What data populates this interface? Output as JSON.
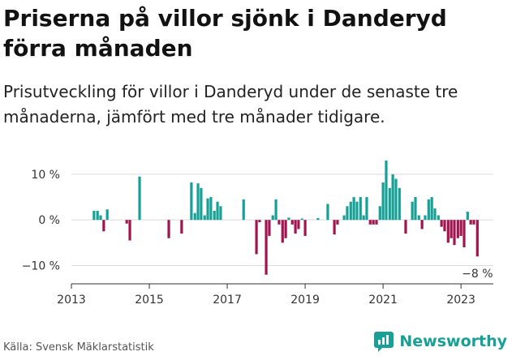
{
  "title": "Priserna på villor sjönk i Danderyd förra månaden",
  "subtitle": "Prisutveckling för villor i Danderyd under de senaste tre månaderna, jämfört med tre månader tidigare.",
  "source": "Källa: Svensk Mäklarstatistik",
  "brand": "Newsworthy",
  "colors": {
    "positive": "#16a096",
    "negative": "#a0144f",
    "brand": "#16a096",
    "grid": "#d9d9d9",
    "axis": "#333333"
  },
  "chart_data": {
    "type": "bar",
    "y_unit": "%",
    "ylim": [
      -14,
      13
    ],
    "yticks": [
      10,
      0,
      -10
    ],
    "ytick_labels": [
      "10 %",
      "0 %",
      "−10 %"
    ],
    "xlim": [
      2013.0,
      2023.83
    ],
    "xticks": [
      2013,
      2015,
      2017,
      2019,
      2021,
      2023
    ],
    "xtick_labels": [
      "2013",
      "2015",
      "2017",
      "2019",
      "2021",
      "2023"
    ],
    "last_value_label": "−8 %",
    "series": [
      {
        "x": 2013.58,
        "v": 2
      },
      {
        "x": 2013.67,
        "v": 2
      },
      {
        "x": 2013.75,
        "v": 1
      },
      {
        "x": 2013.83,
        "v": -2.5
      },
      {
        "x": 2013.92,
        "v": 2.3
      },
      {
        "x": 2014.42,
        "v": -0.8
      },
      {
        "x": 2014.5,
        "v": -4.5
      },
      {
        "x": 2014.75,
        "v": 9.5
      },
      {
        "x": 2015.5,
        "v": -4
      },
      {
        "x": 2015.83,
        "v": -3
      },
      {
        "x": 2016.08,
        "v": 8.2
      },
      {
        "x": 2016.17,
        "v": 1.5
      },
      {
        "x": 2016.25,
        "v": 8
      },
      {
        "x": 2016.33,
        "v": 7
      },
      {
        "x": 2016.42,
        "v": 1
      },
      {
        "x": 2016.5,
        "v": 4.7
      },
      {
        "x": 2016.58,
        "v": 5
      },
      {
        "x": 2016.67,
        "v": 2
      },
      {
        "x": 2016.75,
        "v": 4
      },
      {
        "x": 2016.83,
        "v": 3
      },
      {
        "x": 2017.42,
        "v": 4.5
      },
      {
        "x": 2017.75,
        "v": -7.5
      },
      {
        "x": 2017.83,
        "v": -0.5
      },
      {
        "x": 2018.0,
        "v": -12
      },
      {
        "x": 2018.08,
        "v": -3.5
      },
      {
        "x": 2018.17,
        "v": 1
      },
      {
        "x": 2018.25,
        "v": 4.5
      },
      {
        "x": 2018.33,
        "v": -1
      },
      {
        "x": 2018.42,
        "v": -5
      },
      {
        "x": 2018.5,
        "v": -4
      },
      {
        "x": 2018.58,
        "v": 0.5
      },
      {
        "x": 2018.67,
        "v": -1
      },
      {
        "x": 2018.75,
        "v": -3
      },
      {
        "x": 2018.83,
        "v": -2
      },
      {
        "x": 2018.92,
        "v": 0.3
      },
      {
        "x": 2019.0,
        "v": -3.5
      },
      {
        "x": 2019.33,
        "v": 0.4
      },
      {
        "x": 2019.58,
        "v": 3.5
      },
      {
        "x": 2019.75,
        "v": -3.2
      },
      {
        "x": 2019.83,
        "v": -1
      },
      {
        "x": 2020.0,
        "v": 1
      },
      {
        "x": 2020.08,
        "v": 3
      },
      {
        "x": 2020.17,
        "v": 4
      },
      {
        "x": 2020.25,
        "v": 5
      },
      {
        "x": 2020.33,
        "v": 4
      },
      {
        "x": 2020.42,
        "v": 5
      },
      {
        "x": 2020.5,
        "v": 1
      },
      {
        "x": 2020.58,
        "v": 5
      },
      {
        "x": 2020.67,
        "v": -1
      },
      {
        "x": 2020.75,
        "v": -1
      },
      {
        "x": 2020.83,
        "v": -1
      },
      {
        "x": 2020.92,
        "v": 3
      },
      {
        "x": 2021.0,
        "v": 8.2
      },
      {
        "x": 2021.08,
        "v": 13
      },
      {
        "x": 2021.17,
        "v": 7
      },
      {
        "x": 2021.25,
        "v": 10
      },
      {
        "x": 2021.33,
        "v": 9
      },
      {
        "x": 2021.42,
        "v": 7
      },
      {
        "x": 2021.58,
        "v": -3
      },
      {
        "x": 2021.75,
        "v": 4
      },
      {
        "x": 2021.83,
        "v": 5
      },
      {
        "x": 2021.92,
        "v": 1
      },
      {
        "x": 2022.0,
        "v": -2
      },
      {
        "x": 2022.08,
        "v": 1
      },
      {
        "x": 2022.17,
        "v": 4.5
      },
      {
        "x": 2022.25,
        "v": 5
      },
      {
        "x": 2022.33,
        "v": 2.5
      },
      {
        "x": 2022.42,
        "v": 1
      },
      {
        "x": 2022.5,
        "v": -1.5
      },
      {
        "x": 2022.58,
        "v": -2.5
      },
      {
        "x": 2022.67,
        "v": -5
      },
      {
        "x": 2022.75,
        "v": -4
      },
      {
        "x": 2022.83,
        "v": -5.5
      },
      {
        "x": 2022.92,
        "v": -4
      },
      {
        "x": 2023.0,
        "v": -3.5
      },
      {
        "x": 2023.08,
        "v": -6
      },
      {
        "x": 2023.17,
        "v": 1.8
      },
      {
        "x": 2023.25,
        "v": -1
      },
      {
        "x": 2023.33,
        "v": -1
      },
      {
        "x": 2023.42,
        "v": -8
      }
    ]
  }
}
